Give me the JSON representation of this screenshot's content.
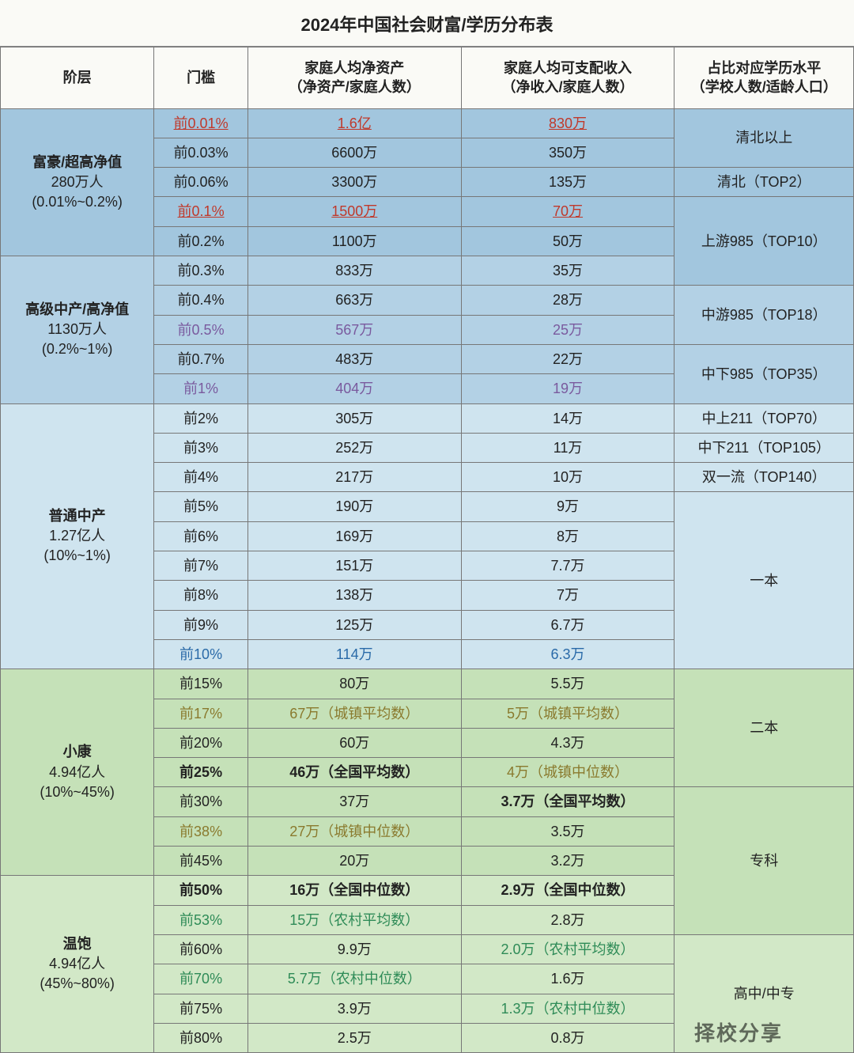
{
  "title": "2024年中国社会财富/学历分布表",
  "watermark": "择校分享",
  "columns": {
    "tier": "阶层",
    "threshold": "门槛",
    "assets": "家庭人均净资产\n（净资产/家庭人数）",
    "income": "家庭人均可支配收入\n（净收入/家庭人数）",
    "edu": "占比对应学历水平\n（学校人数/适龄人口）"
  },
  "tiers": [
    {
      "name": "富豪/超高净值",
      "pop": "280万人",
      "pct": "(0.01%~0.2%)",
      "bg": "bg-blue-dark"
    },
    {
      "name": "高级中产/高净值",
      "pop": "1130万人",
      "pct": "(0.2%~1%)",
      "bg": "bg-blue-mid"
    },
    {
      "name": "普通中产",
      "pop": "1.27亿人",
      "pct": "(10%~1%)",
      "bg": "bg-blue-light"
    },
    {
      "name": "小康",
      "pop": "4.94亿人",
      "pct": "(10%~45%)",
      "bg": "bg-green-mid"
    },
    {
      "name": "温饱",
      "pop": "4.94亿人",
      "pct": "(45%~80%)",
      "bg": "bg-green-light"
    }
  ],
  "edu": [
    {
      "label": "清北以上"
    },
    {
      "label": "清北（TOP2）"
    },
    {
      "label": "上游985（TOP10）"
    },
    {
      "label": "中游985（TOP18）"
    },
    {
      "label": "中下985（TOP35）"
    },
    {
      "label": "中上211（TOP70）"
    },
    {
      "label": "中下211（TOP105）"
    },
    {
      "label": "双一流（TOP140）"
    },
    {
      "label": "一本"
    },
    {
      "label": "二本"
    },
    {
      "label": "专科"
    },
    {
      "label": "高中/中专"
    }
  ],
  "rows": [
    {
      "th": "前0.01%",
      "a": "1.6亿",
      "i": "830万",
      "thc": "red",
      "ac": "red",
      "ic": "red"
    },
    {
      "th": "前0.03%",
      "a": "6600万",
      "i": "350万"
    },
    {
      "th": "前0.06%",
      "a": "3300万",
      "i": "135万"
    },
    {
      "th": "前0.1%",
      "a": "1500万",
      "i": "70万",
      "thc": "red",
      "ac": "red",
      "ic": "red"
    },
    {
      "th": "前0.2%",
      "a": "1100万",
      "i": "50万"
    },
    {
      "th": "前0.3%",
      "a": "833万",
      "i": "35万"
    },
    {
      "th": "前0.4%",
      "a": "663万",
      "i": "28万"
    },
    {
      "th": "前0.5%",
      "a": "567万",
      "i": "25万",
      "thc": "purple",
      "ac": "purple",
      "ic": "purple"
    },
    {
      "th": "前0.7%",
      "a": "483万",
      "i": "22万"
    },
    {
      "th": "前1%",
      "a": "404万",
      "i": "19万",
      "thc": "purple",
      "ac": "purple",
      "ic": "purple"
    },
    {
      "th": "前2%",
      "a": "305万",
      "i": "14万"
    },
    {
      "th": "前3%",
      "a": "252万",
      "i": "11万"
    },
    {
      "th": "前4%",
      "a": "217万",
      "i": "10万"
    },
    {
      "th": "前5%",
      "a": "190万",
      "i": "9万"
    },
    {
      "th": "前6%",
      "a": "169万",
      "i": "8万"
    },
    {
      "th": "前7%",
      "a": "151万",
      "i": "7.7万"
    },
    {
      "th": "前8%",
      "a": "138万",
      "i": "7万"
    },
    {
      "th": "前9%",
      "a": "125万",
      "i": "6.7万"
    },
    {
      "th": "前10%",
      "a": "114万",
      "i": "6.3万",
      "thc": "blue",
      "ac": "blue",
      "ic": "blue"
    },
    {
      "th": "前15%",
      "a": "80万",
      "i": "5.5万"
    },
    {
      "th": "前17%",
      "a": "67万（城镇平均数）",
      "i": "5万（城镇平均数）",
      "thc": "olive",
      "ac": "olive",
      "ic": "olive"
    },
    {
      "th": "前20%",
      "a": "60万",
      "i": "4.3万"
    },
    {
      "th": "前25%",
      "a": "46万（全国平均数）",
      "i": "4万（城镇中位数）",
      "thc": "bold",
      "ac": "bold",
      "ic": "olive"
    },
    {
      "th": "前30%",
      "a": "37万",
      "i": "3.7万（全国平均数）",
      "ic": "bold"
    },
    {
      "th": "前38%",
      "a": "27万（城镇中位数）",
      "i": "3.5万",
      "thc": "olive",
      "ac": "olive"
    },
    {
      "th": "前45%",
      "a": "20万",
      "i": "3.2万"
    },
    {
      "th": "前50%",
      "a": "16万（全国中位数）",
      "i": "2.9万（全国中位数）",
      "thc": "bold",
      "ac": "bold",
      "ic": "bold"
    },
    {
      "th": "前53%",
      "a": "15万（农村平均数）",
      "i": "2.8万",
      "thc": "green",
      "ac": "green"
    },
    {
      "th": "前60%",
      "a": "9.9万",
      "i": "2.0万（农村平均数）",
      "ic": "green"
    },
    {
      "th": "前70%",
      "a": "5.7万（农村中位数）",
      "i": "1.6万",
      "thc": "green",
      "ac": "green"
    },
    {
      "th": "前75%",
      "a": "3.9万",
      "i": "1.3万（农村中位数）",
      "ic": "green"
    },
    {
      "th": "前80%",
      "a": "2.5万",
      "i": "0.8万"
    }
  ],
  "layout": {
    "tierRowspans": [
      5,
      5,
      9,
      7,
      6
    ],
    "eduRowspans": [
      2,
      1,
      3,
      2,
      2,
      1,
      1,
      1,
      6,
      4,
      5,
      4
    ],
    "tierBgRanges": [
      {
        "bg": "bg-blue-dark",
        "from": 0,
        "to": 5
      },
      {
        "bg": "bg-blue-mid",
        "from": 5,
        "to": 10
      },
      {
        "bg": "bg-blue-light",
        "from": 10,
        "to": 19
      },
      {
        "bg": "bg-green-mid",
        "from": 19,
        "to": 26
      },
      {
        "bg": "bg-green-light",
        "from": 26,
        "to": 32
      }
    ]
  },
  "colors": {
    "border": "#777777",
    "bg_blue_dark": "#a2c6de",
    "bg_blue_mid": "#b3d1e5",
    "bg_blue_light": "#cfe4ef",
    "bg_green_mid": "#c5e1b8",
    "bg_green_light": "#d2e8c7",
    "red": "#c0392b",
    "olive": "#8a7a2e",
    "green": "#2e8b57",
    "blue": "#2a6aa8",
    "purple": "#7a5a9e"
  }
}
